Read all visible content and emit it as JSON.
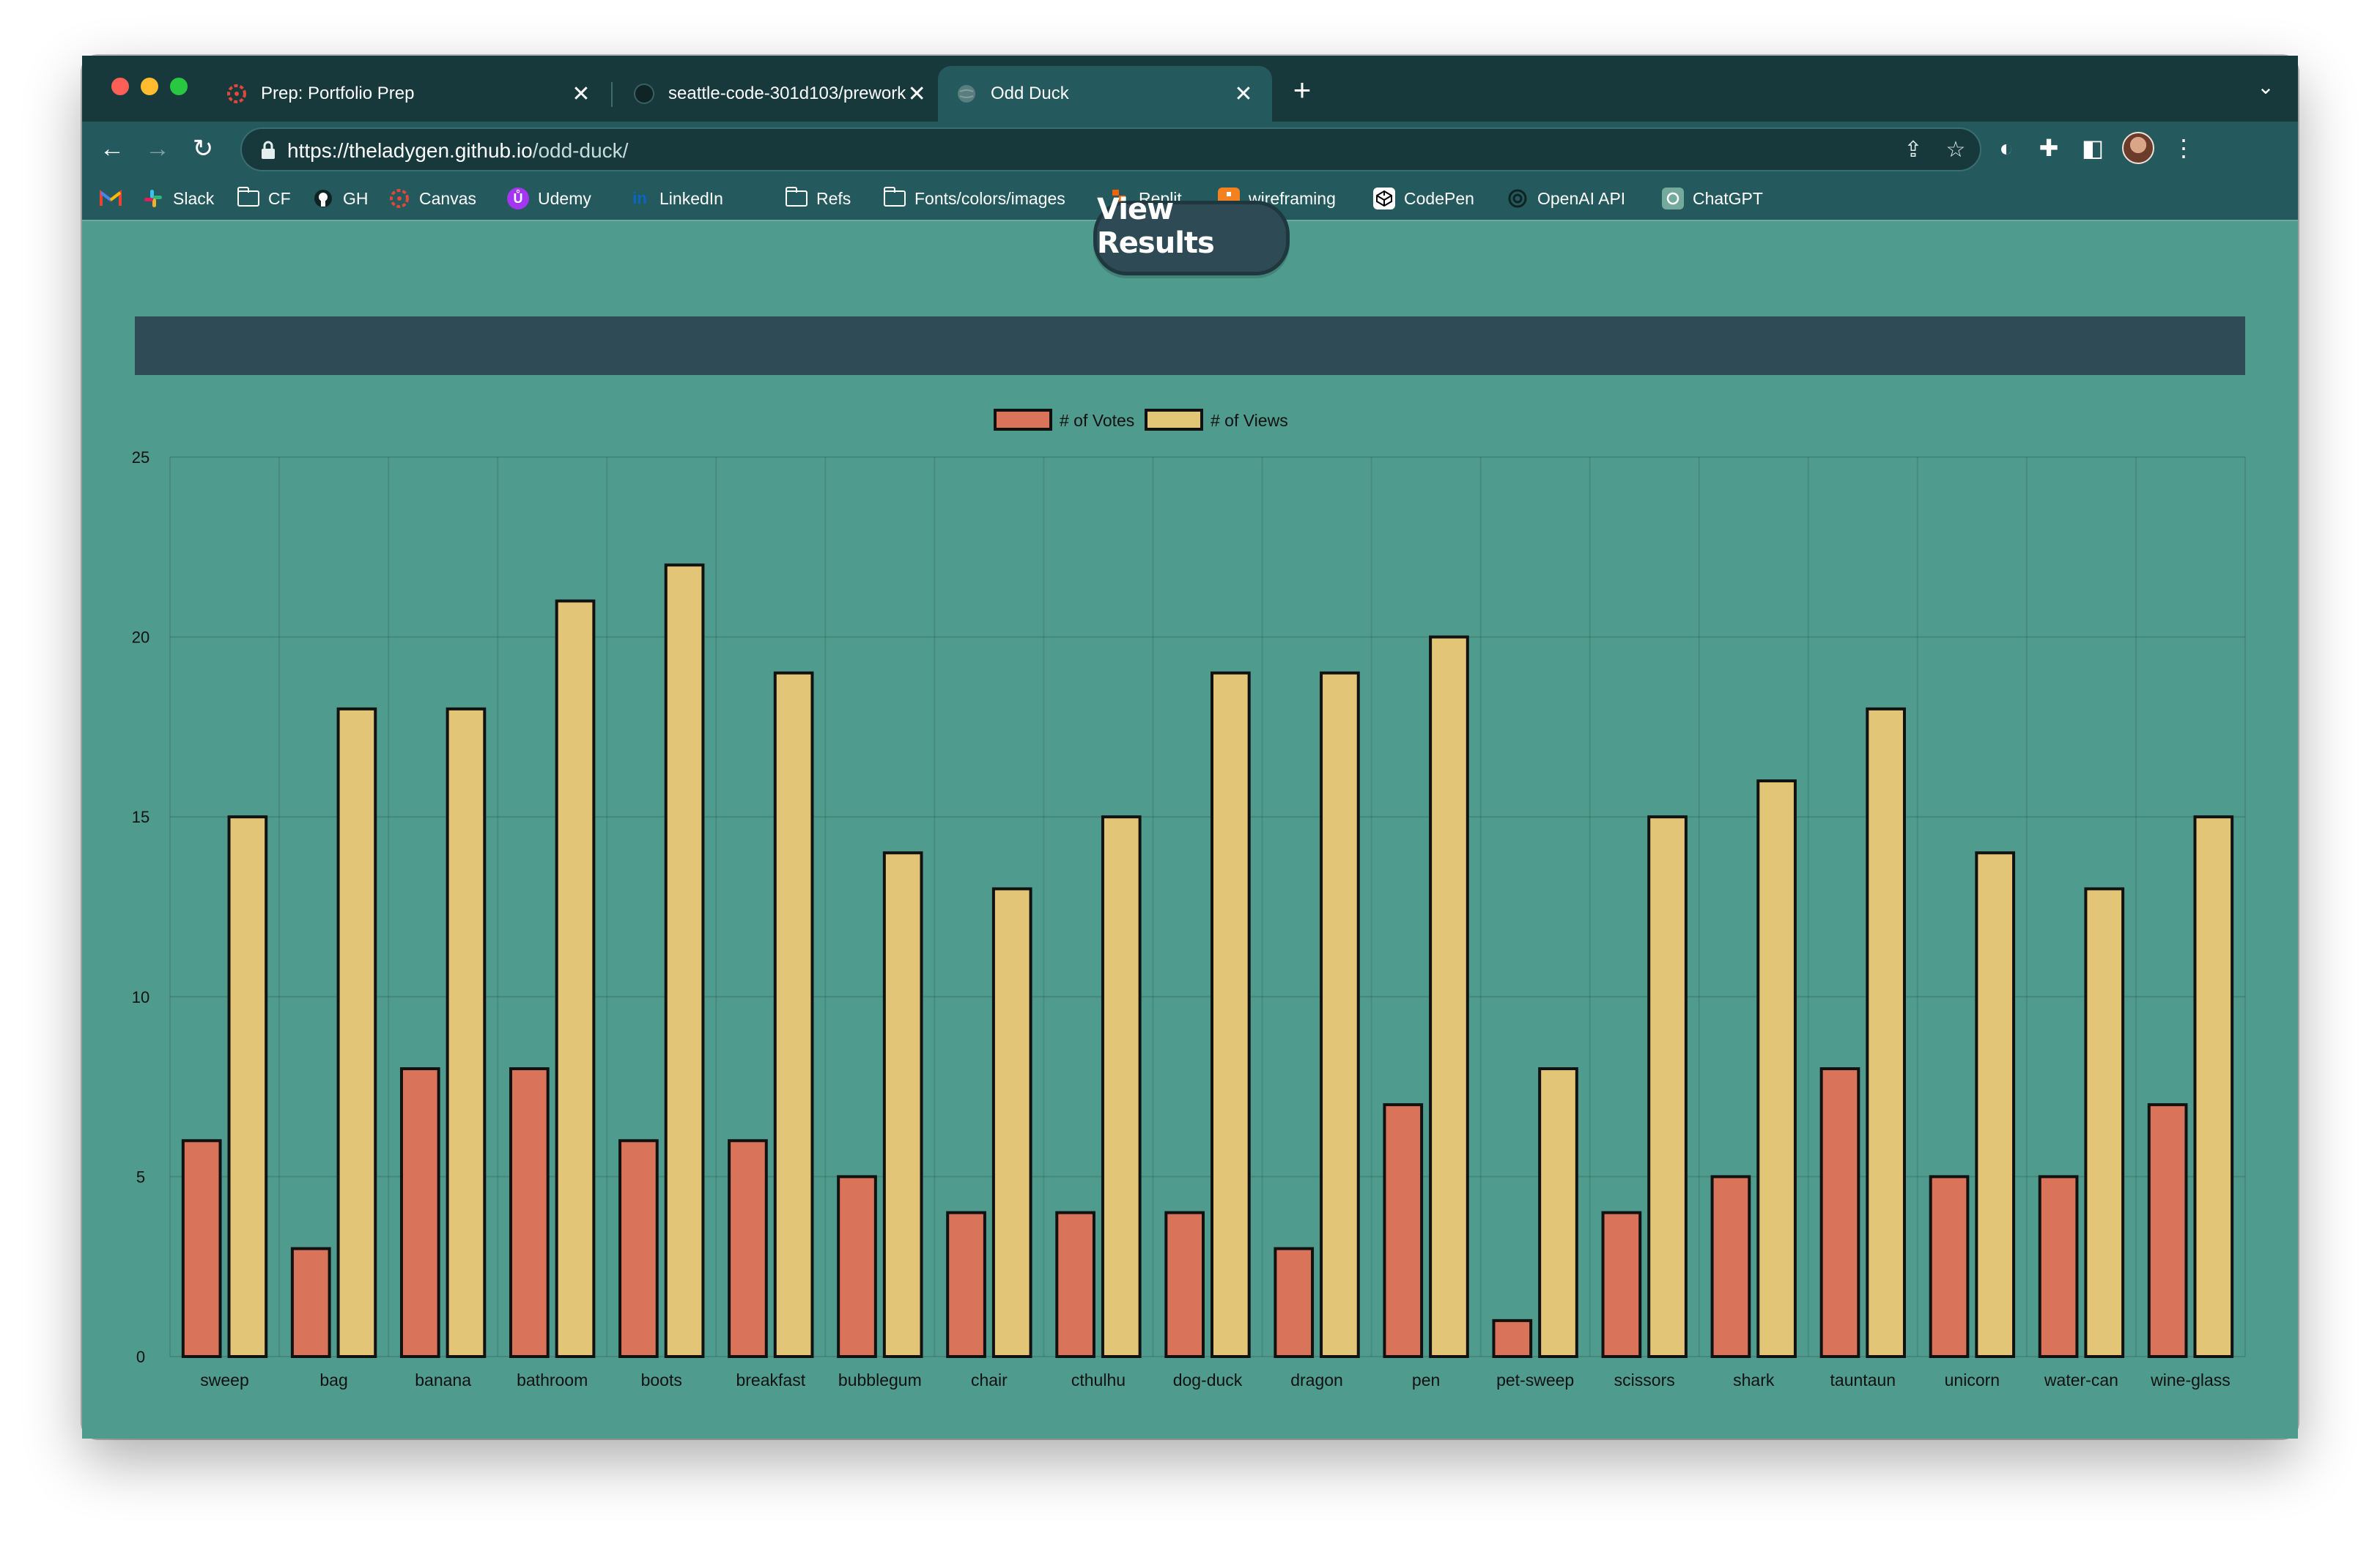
{
  "browser": {
    "tabs": [
      {
        "title": "Prep: Portfolio Prep",
        "icon": "canvas-icon",
        "active": false
      },
      {
        "title": "seattle-code-301d103/prework",
        "icon": "github-icon",
        "active": false
      },
      {
        "title": "Odd Duck",
        "icon": "globe-icon",
        "active": true
      }
    ],
    "close_glyph": "✕",
    "new_tab_glyph": "+",
    "url_host": "https://theladygen.github.io",
    "url_path": "/odd-duck/",
    "bookmarks": [
      {
        "label": "",
        "icon": "gmail-icon"
      },
      {
        "label": "Slack",
        "icon": "slack-icon"
      },
      {
        "label": "CF",
        "icon": "folder-icon"
      },
      {
        "label": "GH",
        "icon": "github-icon"
      },
      {
        "label": "Canvas",
        "icon": "canvas-icon"
      },
      {
        "label": "Udemy",
        "icon": "udemy-icon"
      },
      {
        "label": "LinkedIn",
        "icon": "linkedin-icon"
      },
      {
        "label": "Refs",
        "icon": "folder-icon"
      },
      {
        "label": "Fonts/colors/images",
        "icon": "folder-icon"
      },
      {
        "label": "Replit",
        "icon": "replit-icon"
      },
      {
        "label": "wireframing",
        "icon": "wireframing-icon"
      },
      {
        "label": "CodePen",
        "icon": "codepen-icon"
      },
      {
        "label": "OpenAI API",
        "icon": "openai-icon"
      },
      {
        "label": "ChatGPT",
        "icon": "chatgpt-icon"
      }
    ]
  },
  "page": {
    "view_results_label": "View Results"
  },
  "colors": {
    "page_bg": "#4f9b8d",
    "votes": "#d9735a",
    "views": "#e3c577",
    "banner": "#2f4b56"
  },
  "chart_data": {
    "type": "bar",
    "categories": [
      "sweep",
      "bag",
      "banana",
      "bathroom",
      "boots",
      "breakfast",
      "bubblegum",
      "chair",
      "cthulhu",
      "dog-duck",
      "dragon",
      "pen",
      "pet-sweep",
      "scissors",
      "shark",
      "tauntaun",
      "unicorn",
      "water-can",
      "wine-glass"
    ],
    "series": [
      {
        "name": "# of Votes",
        "values": [
          6,
          3,
          8,
          8,
          6,
          6,
          5,
          4,
          4,
          4,
          3,
          7,
          1,
          4,
          5,
          8,
          5,
          5,
          7
        ],
        "color": "#d9735a"
      },
      {
        "name": "# of Views",
        "values": [
          15,
          18,
          18,
          21,
          22,
          19,
          14,
          13,
          15,
          19,
          19,
          20,
          8,
          15,
          16,
          18,
          14,
          13,
          15
        ],
        "color": "#e3c577"
      }
    ],
    "ylim": [
      0,
      25
    ],
    "yticks": [
      0,
      5,
      10,
      15,
      20,
      25
    ],
    "grid": true,
    "legend": "top-center"
  }
}
